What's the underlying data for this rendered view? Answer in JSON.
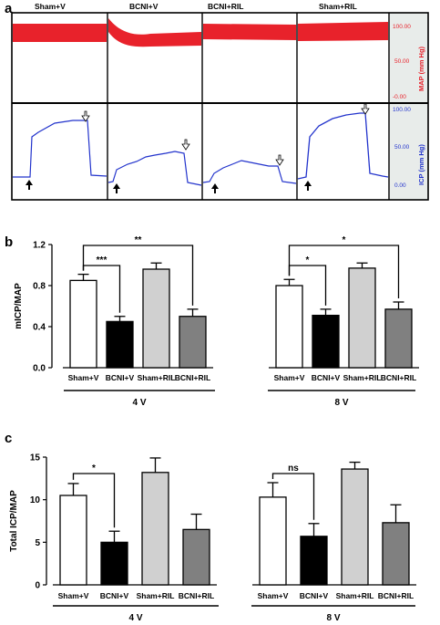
{
  "panels": {
    "a": "a",
    "b": "b",
    "c": "c"
  },
  "traces": {
    "groups": [
      "Sham+V",
      "BCNI+V",
      "BCNI+RIL",
      "Sham+RIL"
    ],
    "map_axis": {
      "label": "MAP (mm Hg)",
      "ticks": [
        "100.00",
        "50.00",
        "-0.00"
      ]
    },
    "icp_axis": {
      "label": "ICP (mm Hg)",
      "ticks": [
        "100.00",
        "50.00",
        "0.00"
      ]
    },
    "colors": {
      "map": "#e8222b",
      "icp": "#2233cc",
      "sidebar": "#e8ecea"
    }
  },
  "chart_data": [
    {
      "panel": "b",
      "type": "bar",
      "ylabel": "mICP/MAP",
      "ylim": [
        0.0,
        1.2
      ],
      "yticks": [
        "0.0",
        "0.4",
        "0.8",
        "1.2"
      ],
      "categories": [
        "Sham+V",
        "BCNI+V",
        "Sham+RIL",
        "BCNI+RIL"
      ],
      "colors": [
        "#ffffff",
        "#000000",
        "#d0d0d0",
        "#808080"
      ],
      "groups": [
        {
          "name": "4 V",
          "values": [
            0.85,
            0.45,
            0.96,
            0.5
          ],
          "errors": [
            0.06,
            0.05,
            0.06,
            0.07
          ],
          "significance": [
            {
              "from": 0,
              "to": 1,
              "label": "***"
            },
            {
              "from": 0,
              "to": 3,
              "label": "**"
            }
          ]
        },
        {
          "name": "8 V",
          "values": [
            0.8,
            0.51,
            0.97,
            0.57
          ],
          "errors": [
            0.06,
            0.06,
            0.05,
            0.07
          ],
          "significance": [
            {
              "from": 0,
              "to": 1,
              "label": "*"
            },
            {
              "from": 0,
              "to": 3,
              "label": "*"
            }
          ]
        }
      ]
    },
    {
      "panel": "c",
      "type": "bar",
      "ylabel": "Total ICP/MAP",
      "ylim": [
        0,
        15
      ],
      "yticks": [
        "0",
        "5",
        "10",
        "15"
      ],
      "categories": [
        "Sham+V",
        "BCNI+V",
        "Sham+RIL",
        "BCNI+RIL"
      ],
      "colors": [
        "#ffffff",
        "#000000",
        "#d0d0d0",
        "#808080"
      ],
      "groups": [
        {
          "name": "4 V",
          "values": [
            10.5,
            5.0,
            13.2,
            6.5
          ],
          "errors": [
            1.4,
            1.3,
            1.7,
            1.8
          ],
          "significance": [
            {
              "from": 0,
              "to": 1,
              "label": "*"
            }
          ]
        },
        {
          "name": "8 V",
          "values": [
            10.3,
            5.7,
            13.6,
            7.3
          ],
          "errors": [
            1.7,
            1.5,
            0.8,
            2.1
          ],
          "significance": [
            {
              "from": 0,
              "to": 1,
              "label": "ns"
            }
          ]
        }
      ]
    }
  ]
}
